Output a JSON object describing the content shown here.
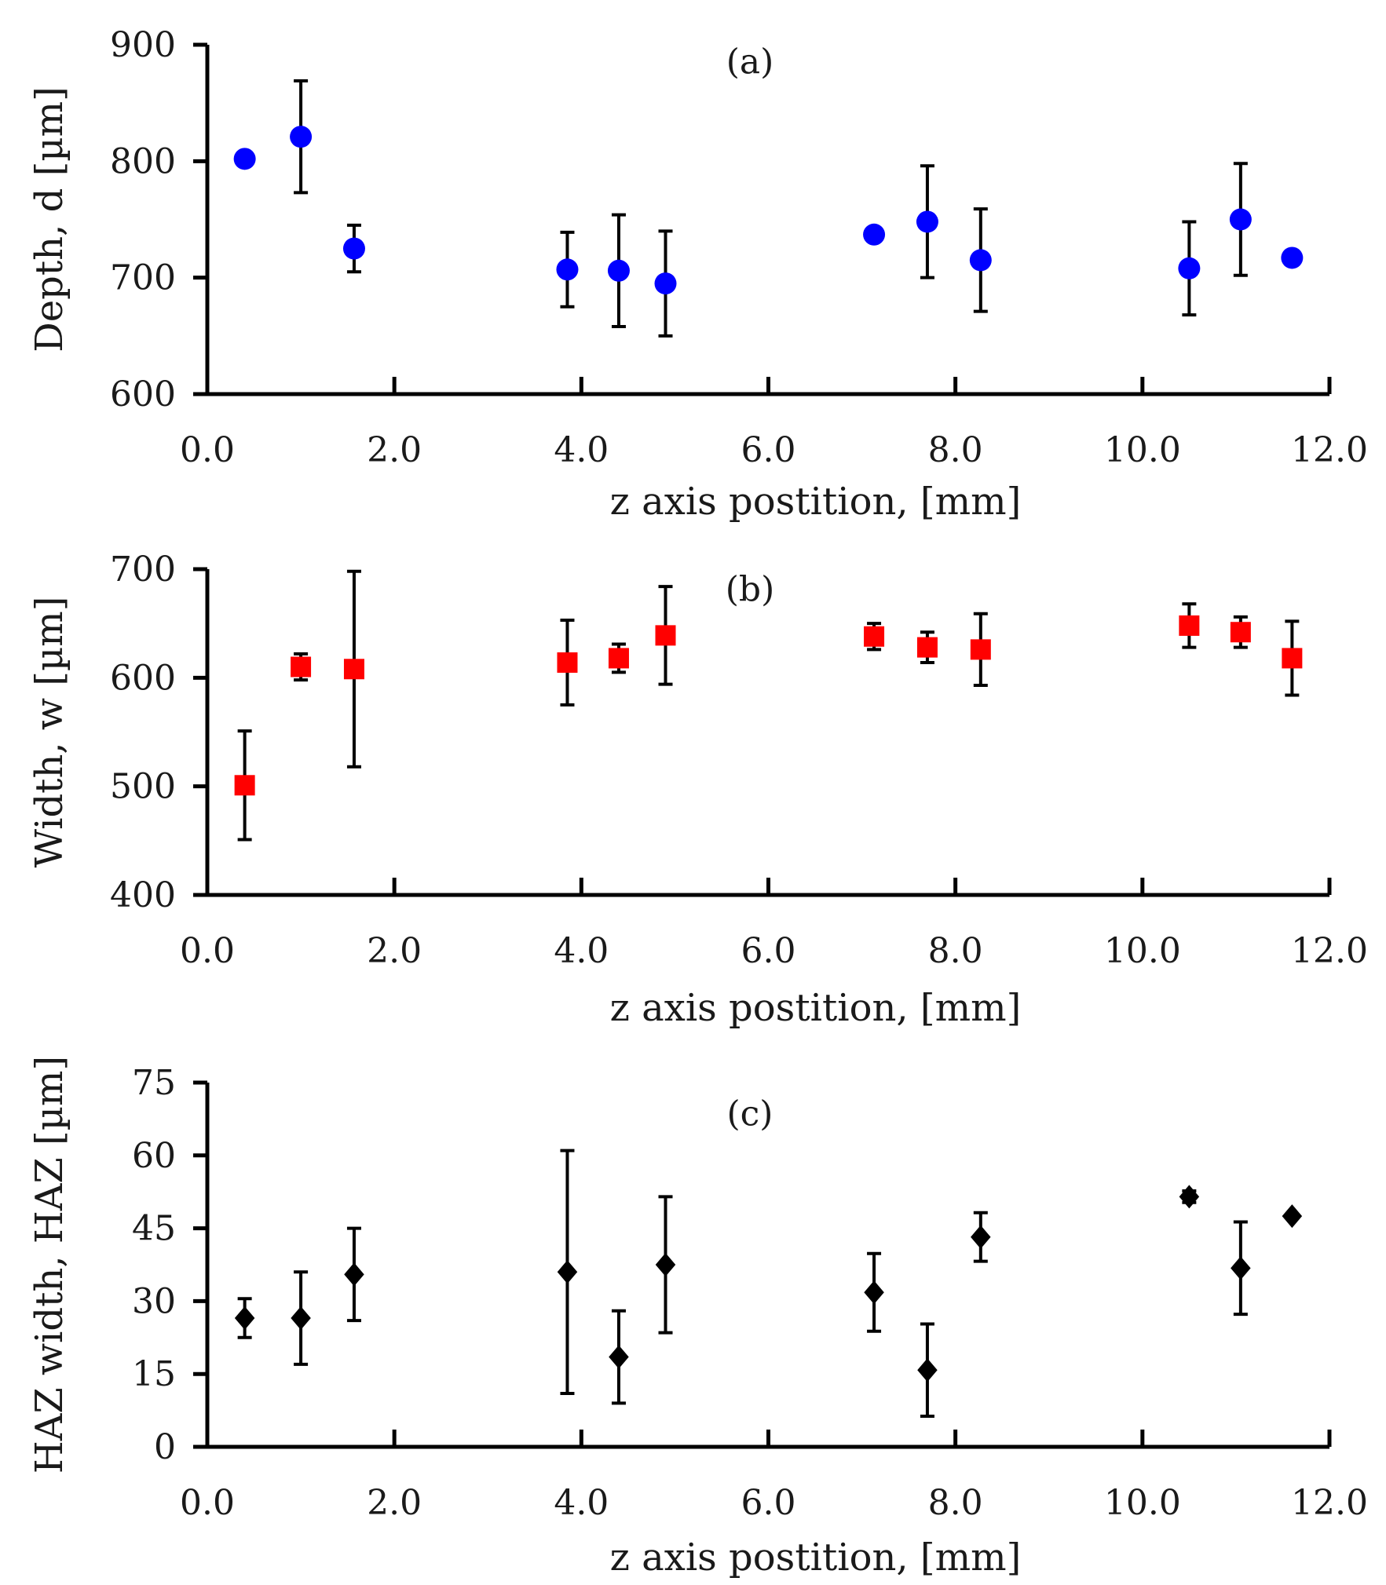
{
  "chart_data": [
    {
      "type": "scatter",
      "panel_label": "(a)",
      "xlabel": "z axis postition,  [mm]",
      "ylabel": "Depth, d [µm]",
      "xlim": [
        0,
        12
      ],
      "ylim": [
        600,
        900
      ],
      "x_ticks": [
        "0.0",
        "2.0",
        "4.0",
        "6.0",
        "8.0",
        "10.0",
        "12.0"
      ],
      "y_ticks": [
        "600",
        "700",
        "800",
        "900"
      ],
      "marker": "circle",
      "color": "#0000ff",
      "points": [
        {
          "x": 0.4,
          "y": 802,
          "err": null
        },
        {
          "x": 1.0,
          "y": 821,
          "err": 48
        },
        {
          "x": 1.57,
          "y": 725,
          "err": 20
        },
        {
          "x": 3.85,
          "y": 707,
          "err": 32
        },
        {
          "x": 4.4,
          "y": 706,
          "err": 48
        },
        {
          "x": 4.9,
          "y": 695,
          "err": 45
        },
        {
          "x": 7.13,
          "y": 737,
          "err": null
        },
        {
          "x": 7.7,
          "y": 748,
          "err": 48
        },
        {
          "x": 8.27,
          "y": 715,
          "err": 44
        },
        {
          "x": 10.5,
          "y": 708,
          "err": 40
        },
        {
          "x": 11.05,
          "y": 750,
          "err": 48
        },
        {
          "x": 11.6,
          "y": 717,
          "err": null
        }
      ]
    },
    {
      "type": "scatter",
      "panel_label": "(b)",
      "xlabel": "z axis postition,  [mm]",
      "ylabel": "Width,  w [µm]",
      "xlim": [
        0,
        12
      ],
      "ylim": [
        400,
        700
      ],
      "x_ticks": [
        "0.0",
        "2.0",
        "4.0",
        "6.0",
        "8.0",
        "10.0",
        "12.0"
      ],
      "y_ticks": [
        "400",
        "500",
        "600",
        "700"
      ],
      "marker": "square",
      "color": "#ff0000",
      "points": [
        {
          "x": 0.4,
          "y": 501,
          "err": 50
        },
        {
          "x": 1.0,
          "y": 610,
          "err": 12
        },
        {
          "x": 1.57,
          "y": 608,
          "err": 90
        },
        {
          "x": 3.85,
          "y": 614,
          "err": 39
        },
        {
          "x": 4.4,
          "y": 618,
          "err": 13
        },
        {
          "x": 4.9,
          "y": 639,
          "err": 45
        },
        {
          "x": 7.13,
          "y": 638,
          "err": 12
        },
        {
          "x": 7.7,
          "y": 628,
          "err": 14
        },
        {
          "x": 8.27,
          "y": 626,
          "err": 33
        },
        {
          "x": 10.5,
          "y": 648,
          "err": 20
        },
        {
          "x": 11.05,
          "y": 642,
          "err": 14
        },
        {
          "x": 11.6,
          "y": 618,
          "err": 34
        }
      ]
    },
    {
      "type": "scatter",
      "panel_label": "(c)",
      "xlabel": "z axis postition,  [mm]",
      "ylabel": "HAZ width,  HAZ [µm]",
      "xlim": [
        0,
        12
      ],
      "ylim": [
        0,
        75
      ],
      "x_ticks": [
        "0.0",
        "2.0",
        "4.0",
        "6.0",
        "8.0",
        "10.0",
        "12.0"
      ],
      "y_ticks": [
        "0",
        "15",
        "30",
        "45",
        "60",
        "75"
      ],
      "marker": "diamond",
      "color": "#000000",
      "points": [
        {
          "x": 0.4,
          "y": 26.5,
          "err": 4
        },
        {
          "x": 1.0,
          "y": 26.5,
          "err": 9.5
        },
        {
          "x": 1.57,
          "y": 35.5,
          "err": 9.5
        },
        {
          "x": 3.85,
          "y": 36.0,
          "err": 25
        },
        {
          "x": 4.4,
          "y": 18.5,
          "err": 9.5
        },
        {
          "x": 4.9,
          "y": 37.5,
          "err": 14
        },
        {
          "x": 7.13,
          "y": 31.8,
          "err": 8
        },
        {
          "x": 7.7,
          "y": 15.8,
          "err": 9.5
        },
        {
          "x": 8.27,
          "y": 43.2,
          "err": 5
        },
        {
          "x": 10.5,
          "y": 51.5,
          "err": 1.2
        },
        {
          "x": 11.05,
          "y": 36.8,
          "err": 9.5
        },
        {
          "x": 11.6,
          "y": 47.5,
          "err": null
        }
      ]
    }
  ]
}
